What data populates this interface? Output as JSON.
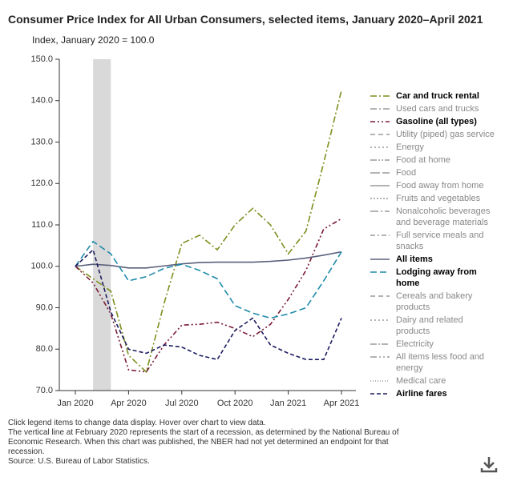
{
  "chart_data": {
    "type": "line",
    "title": "Consumer Price Index for All Urban Consumers, selected items, January 2020–April 2021",
    "subtitle": "Index, January 2020 = 100.0",
    "categories": [
      "Jan 2020",
      null,
      null,
      "Apr 2020",
      null,
      null,
      "Jul 2020",
      null,
      null,
      "Oct 2020",
      null,
      null,
      "Jan 2021",
      null,
      null,
      "Apr 2021"
    ],
    "ylim": [
      70,
      150
    ],
    "yticks": [
      {
        "value": 70,
        "label": "70.0"
      },
      {
        "value": 80,
        "label": "80.0"
      },
      {
        "value": 90,
        "label": "90.0"
      },
      {
        "value": 100,
        "label": "100.0"
      },
      {
        "value": 110,
        "label": "110.0"
      },
      {
        "value": 120,
        "label": "120.0"
      },
      {
        "value": 130,
        "label": "130.0"
      },
      {
        "value": 140,
        "label": "140.0"
      },
      {
        "value": 150,
        "label": "150.0"
      }
    ],
    "recession": {
      "start": 1,
      "end": 2,
      "color": "#d9d9d9"
    },
    "series": [
      {
        "name": "Car and truck rental",
        "color": "#7d8f1f",
        "dash": "8 3 2 3",
        "visible": true,
        "values": [
          100,
          97,
          94,
          78.5,
          74.5,
          91,
          105.5,
          107.5,
          104,
          110,
          114,
          110,
          103,
          108.5,
          125,
          142.5
        ]
      },
      {
        "name": "Used cars and trucks",
        "color": "#9a9a9a",
        "dash": "8 3 2 3",
        "visible": false
      },
      {
        "name": "Gasoline (all types)",
        "color": "#7a1a34",
        "dash": "6 3 2 3 2 3",
        "visible": true,
        "values": [
          100,
          96,
          88.5,
          75,
          74.5,
          81,
          85.8,
          86,
          86.5,
          85,
          83,
          86,
          92,
          99,
          109,
          111.5
        ]
      },
      {
        "name": "Utility (piped) gas service",
        "color": "#9a9a9a",
        "dash": "6 4",
        "visible": false
      },
      {
        "name": "Energy",
        "color": "#9a9a9a",
        "dash": "2 3",
        "visible": false
      },
      {
        "name": "Food at home",
        "color": "#9a9a9a",
        "dash": "8 2 2 2 2 2",
        "visible": false
      },
      {
        "name": "Food",
        "color": "#9a9a9a",
        "dash": "12 3",
        "visible": false
      },
      {
        "name": "Food away from home",
        "color": "#9a9a9a",
        "dash": "",
        "visible": false
      },
      {
        "name": "Fruits and vegetables",
        "color": "#9a9a9a",
        "dash": "2 2",
        "visible": false
      },
      {
        "name": "Nonalcoholic beverages and beverage materials",
        "color": "#9a9a9a",
        "dash": "10 3 2 3",
        "visible": false
      },
      {
        "name": "Full service meals and snacks",
        "color": "#9a9a9a",
        "dash": "6 3 2 3",
        "visible": false
      },
      {
        "name": "All items",
        "color": "#5b607c",
        "dash": "",
        "visible": true,
        "values": [
          100,
          100.5,
          100.2,
          99.6,
          99.6,
          100.1,
          100.6,
          100.9,
          101,
          101,
          101,
          101.2,
          101.5,
          102,
          102.7,
          103.5
        ]
      },
      {
        "name": "Lodging away from home",
        "color": "#1f8bab",
        "dash": "8 4",
        "visible": true,
        "values": [
          100,
          106,
          103,
          96.5,
          97.5,
          99.5,
          100.5,
          99,
          97,
          90.5,
          88.7,
          87.5,
          88.5,
          90,
          96.5,
          103.5
        ]
      },
      {
        "name": "Cereals and bakery products",
        "color": "#9a9a9a",
        "dash": "6 4",
        "visible": false
      },
      {
        "name": "Dairy and related products",
        "color": "#9a9a9a",
        "dash": "2 3",
        "visible": false
      },
      {
        "name": "Electricity",
        "color": "#9a9a9a",
        "dash": "8 2 2 2",
        "visible": false
      },
      {
        "name": "All items less food and energy",
        "color": "#9a9a9a",
        "dash": "8 3 2 3 2 3",
        "visible": false
      },
      {
        "name": "Medical care",
        "color": "#9a9a9a",
        "dash": "1 2",
        "visible": false
      },
      {
        "name": "Airline fares",
        "color": "#1b1b5f",
        "dash": "5 3",
        "visible": true,
        "values": [
          100,
          104,
          89,
          80,
          79,
          81,
          80.5,
          78.5,
          77.5,
          84.5,
          87.5,
          81,
          79,
          77.5,
          77.5,
          87.5
        ]
      }
    ],
    "notes": [
      "Click legend items to change data display. Hover over chart to view data.",
      "The vertical line at February 2020 represents the start of a recession, as determined by the National Bureau of Economic Research. When this chart was published, the NBER had not yet determined an endpoint for that recession.",
      "Source: U.S. Bureau of Labor Statistics."
    ]
  }
}
